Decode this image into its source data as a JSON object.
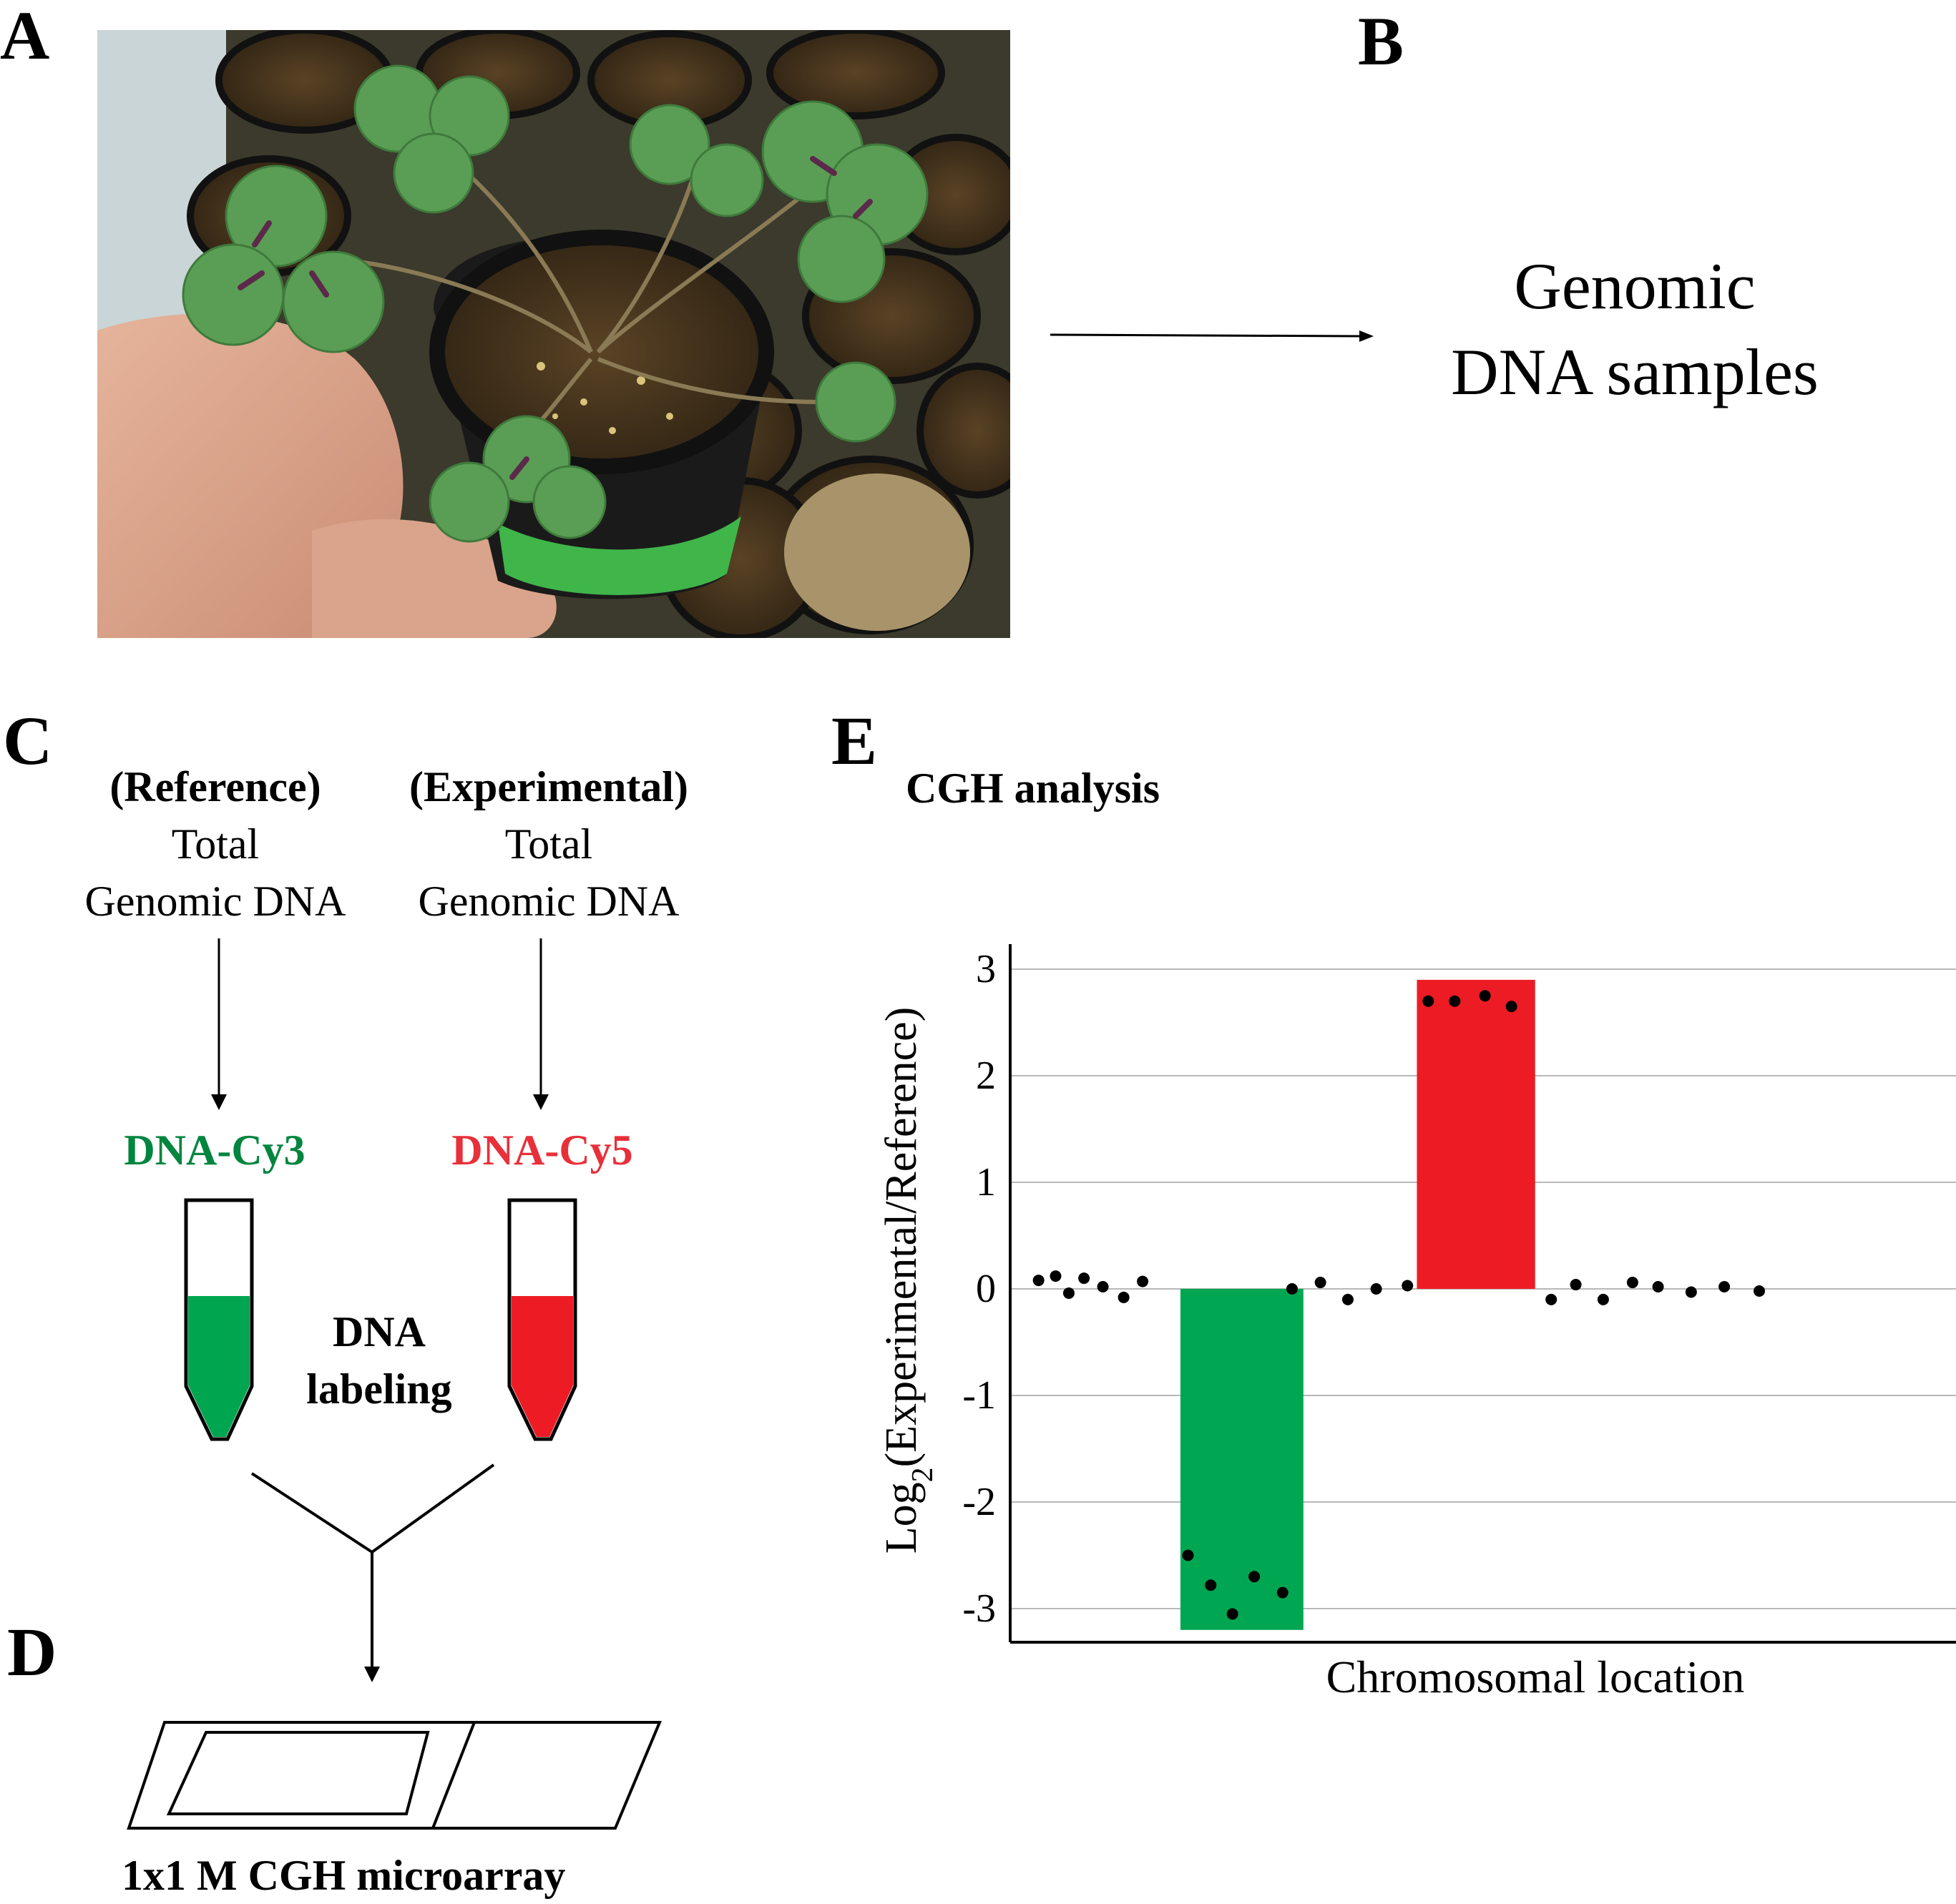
{
  "panels": {
    "a": "A",
    "b": "B",
    "c": "C",
    "d": "D",
    "e": "E"
  },
  "panel_b": {
    "line1": "Genomic",
    "line2": "DNA samples"
  },
  "panel_c": {
    "reference": {
      "heading": "(Reference)",
      "line1": "Total",
      "line2": "Genomic DNA",
      "dye_label": "DNA-Cy3",
      "dye_color": "#00853f",
      "tube_fill": "#00a550"
    },
    "experimental": {
      "heading": "(Experimental)",
      "line1": "Total",
      "line2": "Genomic DNA",
      "dye_label": "DNA-Cy5",
      "dye_color": "#e8303a",
      "tube_fill": "#ed1c24"
    },
    "labeling_line1": "DNA",
    "labeling_line2": "labeling"
  },
  "panel_d": {
    "caption": "1x1 M CGH microarray"
  },
  "panel_e": {
    "title": "CGH analysis"
  },
  "chart_data": {
    "type": "bar",
    "title": "CGH analysis",
    "xlabel": "Chromosomal location",
    "ylabel_main": "Log",
    "ylabel_sub": "2",
    "ylabel_rest": "(Experimental/Reference)",
    "ylim": [
      -3.35,
      3.2
    ],
    "yticks": [
      3,
      2,
      1,
      0,
      -1,
      -2,
      -3
    ],
    "ytick_labels": [
      "3",
      "2",
      "1",
      "0",
      "-1",
      "-2",
      "-3"
    ],
    "grid": true,
    "xlim": [
      0,
      100
    ],
    "bars": [
      {
        "x_start": 18.0,
        "x_end": 31.0,
        "value": -3.2,
        "color": "#00a651"
      },
      {
        "x_start": 43.0,
        "x_end": 55.5,
        "value": 2.9,
        "color": "#ed1c24"
      }
    ],
    "points": [
      {
        "x": 3.0,
        "y": 0.08
      },
      {
        "x": 4.8,
        "y": 0.12
      },
      {
        "x": 6.2,
        "y": -0.04
      },
      {
        "x": 7.8,
        "y": 0.1
      },
      {
        "x": 9.8,
        "y": 0.02
      },
      {
        "x": 12.0,
        "y": -0.08
      },
      {
        "x": 14.0,
        "y": 0.07
      },
      {
        "x": 18.8,
        "y": -2.5
      },
      {
        "x": 21.2,
        "y": -2.78
      },
      {
        "x": 23.5,
        "y": -3.05
      },
      {
        "x": 25.8,
        "y": -2.7
      },
      {
        "x": 28.8,
        "y": -2.85
      },
      {
        "x": 29.8,
        "y": 0.0
      },
      {
        "x": 32.8,
        "y": 0.06
      },
      {
        "x": 35.7,
        "y": -0.1
      },
      {
        "x": 38.7,
        "y": 0.0
      },
      {
        "x": 42.0,
        "y": 0.03
      },
      {
        "x": 44.2,
        "y": 2.7
      },
      {
        "x": 47.0,
        "y": 2.7
      },
      {
        "x": 50.2,
        "y": 2.75
      },
      {
        "x": 53.0,
        "y": 2.65
      },
      {
        "x": 57.2,
        "y": -0.1
      },
      {
        "x": 59.8,
        "y": 0.04
      },
      {
        "x": 62.7,
        "y": -0.1
      },
      {
        "x": 65.8,
        "y": 0.06
      },
      {
        "x": 68.5,
        "y": 0.02
      },
      {
        "x": 72.0,
        "y": -0.03
      },
      {
        "x": 75.5,
        "y": 0.02
      },
      {
        "x": 79.2,
        "y": -0.02
      }
    ]
  }
}
